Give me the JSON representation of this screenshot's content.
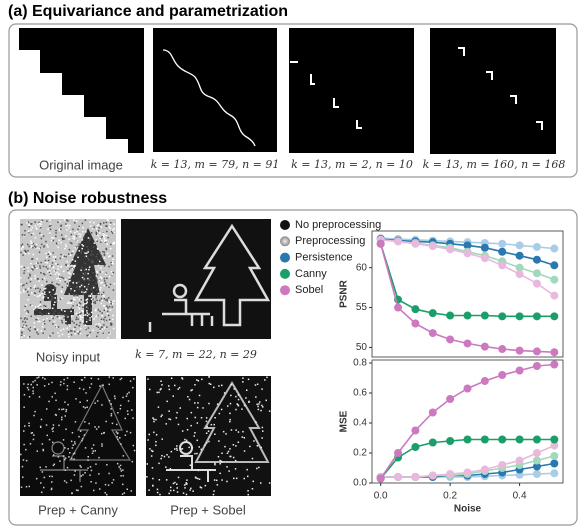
{
  "section_a": {
    "title": "(a) Equivariance and parametrization",
    "captions": [
      "Original image",
      "k = 13, m = 79, n = 91",
      "k = 13, m = 2, n = 10",
      "k = 13, m = 160, n = 168"
    ]
  },
  "section_b": {
    "title": "(b) Noise robustness",
    "captions": [
      "Noisy input",
      "k = 7, m = 22, n = 29",
      "Prep + Canny",
      "Prep + Sobel"
    ]
  },
  "chart_data": [
    {
      "type": "line",
      "ylabel": "PSNR",
      "legend": [
        {
          "name": "No preprocessing",
          "color": "#111111"
        },
        {
          "name": "Preprocessing",
          "color": "#888888"
        },
        {
          "name": "Persistence",
          "color": "#2a78b0"
        },
        {
          "name": "Canny",
          "color": "#1a9e6a"
        },
        {
          "name": "Sobel",
          "color": "#cc79c0"
        }
      ],
      "x": [
        0,
        0.05,
        0.1,
        0.15,
        0.2,
        0.25,
        0.3,
        0.35,
        0.4,
        0.45,
        0.5
      ],
      "xlim": [
        -0.025,
        0.525
      ],
      "ylim": [
        48.8,
        64.6
      ],
      "yticks": [
        50,
        55,
        60
      ],
      "series": [
        {
          "color": "#a9cde6",
          "values": [
            63.7,
            63.6,
            63.5,
            63.4,
            63.3,
            63.2,
            63.1,
            63.0,
            62.8,
            62.6,
            62.4
          ]
        },
        {
          "color": "#2a78b0",
          "values": [
            63.6,
            63.4,
            63.3,
            63.2,
            63.0,
            62.8,
            62.5,
            62.0,
            61.5,
            61.0,
            60.3
          ]
        },
        {
          "color": "#a0d9bb",
          "values": [
            63.5,
            63.3,
            63.1,
            62.8,
            62.5,
            62.0,
            61.5,
            60.8,
            60.0,
            59.3,
            58.5
          ]
        },
        {
          "color": "#e8b9dd",
          "values": [
            63.5,
            63.3,
            63.0,
            62.7,
            62.3,
            61.8,
            61.2,
            60.3,
            59.2,
            58.0,
            56.5
          ]
        },
        {
          "color": "#1a9e6a",
          "values": [
            63.0,
            56.0,
            54.8,
            54.3,
            54.0,
            54.0,
            54.0,
            53.9,
            53.9,
            53.9,
            53.9
          ]
        },
        {
          "color": "#cc79c0",
          "values": [
            63.0,
            55.0,
            53.0,
            51.8,
            51.0,
            50.5,
            50.1,
            49.8,
            49.6,
            49.5,
            49.4
          ]
        }
      ]
    },
    {
      "type": "line",
      "ylabel": "MSE",
      "xlabel": "Noise",
      "x": [
        0,
        0.05,
        0.1,
        0.15,
        0.2,
        0.25,
        0.3,
        0.35,
        0.4,
        0.45,
        0.5
      ],
      "xlim": [
        -0.025,
        0.525
      ],
      "ylim": [
        0,
        0.82
      ],
      "xticks": [
        {
          "value": 0,
          "label": "0.0"
        },
        {
          "value": 0.2,
          "label": "0.2"
        },
        {
          "value": 0.4,
          "label": "0.4"
        }
      ],
      "yticks": [
        {
          "value": 0,
          "label": "0.0"
        },
        {
          "value": 0.2,
          "label": "0.2"
        },
        {
          "value": 0.4,
          "label": "0.4"
        },
        {
          "value": 0.6,
          "label": "0.6"
        },
        {
          "value": 0.8,
          "label": "0.8"
        }
      ],
      "series": [
        {
          "color": "#a9cde6",
          "values": [
            0.04,
            0.04,
            0.04,
            0.04,
            0.04,
            0.04,
            0.045,
            0.05,
            0.055,
            0.06,
            0.065
          ]
        },
        {
          "color": "#2a78b0",
          "values": [
            0.04,
            0.04,
            0.04,
            0.04,
            0.05,
            0.05,
            0.06,
            0.07,
            0.09,
            0.11,
            0.13
          ]
        },
        {
          "color": "#a0d9bb",
          "values": [
            0.04,
            0.04,
            0.04,
            0.05,
            0.05,
            0.06,
            0.08,
            0.1,
            0.12,
            0.15,
            0.18
          ]
        },
        {
          "color": "#e8b9dd",
          "values": [
            0.04,
            0.04,
            0.04,
            0.05,
            0.06,
            0.07,
            0.09,
            0.12,
            0.15,
            0.2,
            0.25
          ]
        },
        {
          "color": "#1a9e6a",
          "values": [
            0.03,
            0.17,
            0.24,
            0.27,
            0.28,
            0.29,
            0.29,
            0.29,
            0.29,
            0.29,
            0.29
          ]
        },
        {
          "color": "#cc79c0",
          "values": [
            0.03,
            0.2,
            0.35,
            0.47,
            0.56,
            0.63,
            0.68,
            0.72,
            0.75,
            0.78,
            0.79
          ]
        }
      ]
    }
  ]
}
